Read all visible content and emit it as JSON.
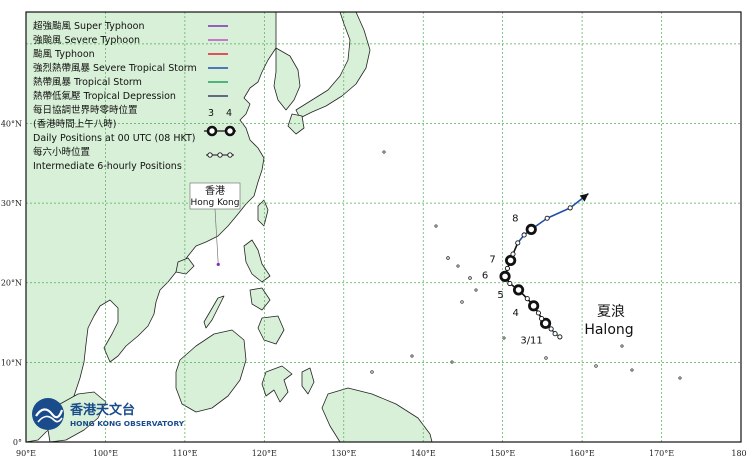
{
  "legend": {
    "intensity": [
      {
        "label": "超強颱風 Super Typhoon",
        "color": "#7b2fb5"
      },
      {
        "label": "強颱風 Severe Typhoon",
        "color": "#c050c8"
      },
      {
        "label": "颱風  Typhoon",
        "color": "#e0202a"
      },
      {
        "label": "強烈熱帶風暴 Severe Tropical Storm",
        "color": "#1f4fb0"
      },
      {
        "label": "熱帶風暴 Tropical Storm",
        "color": "#20a060"
      },
      {
        "label": "熱帶低氣壓  Tropical Depression",
        "color": "#3a3a6a"
      }
    ],
    "daily_title_zh1": "每日協調世界時零時位置",
    "daily_title_zh2": "(香港時間上午八時)",
    "daily_title_en": "Daily Positions at 00 UTC (08 HKT)",
    "daily_sample_labels": [
      "3",
      "4"
    ],
    "six_hourly_zh": "每六小時位置",
    "six_hourly_en": "Intermediate 6-hourly Positions"
  },
  "axes": {
    "lon_labels": [
      "90°E",
      "100°E",
      "110°E",
      "120°E",
      "130°E",
      "140°E",
      "150°E",
      "160°E",
      "170°E",
      "180°"
    ],
    "lat_labels": [
      "0°",
      "10°N",
      "20°N",
      "30°N",
      "40°N"
    ]
  },
  "hong_kong": {
    "zh": "香港",
    "en": "Hong Kong",
    "lon": 114.2,
    "lat": 22.3
  },
  "storm": {
    "name_zh": "夏浪",
    "name_en": "Halong"
  },
  "track": [
    {
      "lon": 157.2,
      "lat": 13.2,
      "intensity": "td"
    },
    {
      "lon": 156.6,
      "lat": 13.6,
      "intensity": "ts"
    },
    {
      "lon": 156.1,
      "lat": 14.2,
      "intensity": "sts"
    },
    {
      "lon": 155.4,
      "lat": 14.9,
      "intensity": "ty",
      "day": "3/11"
    },
    {
      "lon": 154.9,
      "lat": 15.5,
      "intensity": "ty"
    },
    {
      "lon": 154.5,
      "lat": 16.2,
      "intensity": "ty"
    },
    {
      "lon": 153.9,
      "lat": 17.1,
      "intensity": "ty",
      "day": "4"
    },
    {
      "lon": 153.1,
      "lat": 18.0,
      "intensity": "ty"
    },
    {
      "lon": 152.0,
      "lat": 19.1,
      "intensity": "ty",
      "day": "5"
    },
    {
      "lon": 150.9,
      "lat": 19.9,
      "intensity": "ty"
    },
    {
      "lon": 150.3,
      "lat": 20.8,
      "intensity": "ty",
      "day": "6"
    },
    {
      "lon": 150.6,
      "lat": 21.8,
      "intensity": "ty"
    },
    {
      "lon": 151.0,
      "lat": 22.8,
      "intensity": "ty",
      "day": "7"
    },
    {
      "lon": 151.3,
      "lat": 23.6,
      "intensity": "ty"
    },
    {
      "lon": 151.9,
      "lat": 25.0,
      "intensity": "ty"
    },
    {
      "lon": 152.7,
      "lat": 26.0,
      "intensity": "sts"
    },
    {
      "lon": 153.6,
      "lat": 26.7,
      "intensity": "sts",
      "day": "8"
    },
    {
      "lon": 155.6,
      "lat": 28.1,
      "intensity": "sts"
    },
    {
      "lon": 158.5,
      "lat": 29.4,
      "intensity": "sts"
    },
    {
      "lon": 160.8,
      "lat": 31.2,
      "intensity": "sts"
    }
  ],
  "logo": {
    "zh": "香港天文台",
    "en": "HONG KONG OBSERVATORY"
  }
}
